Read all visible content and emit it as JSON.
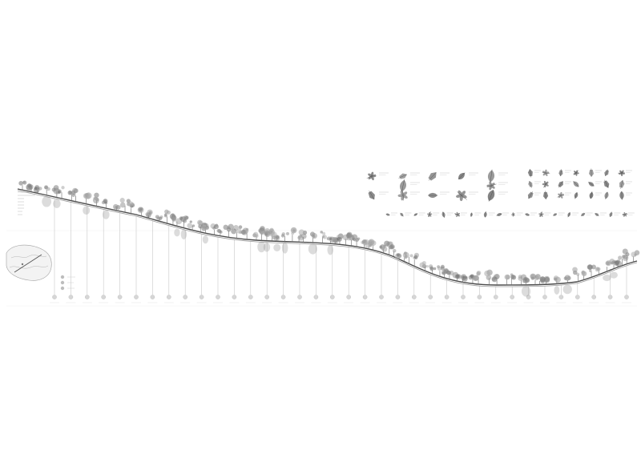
{
  "drawing": {
    "title": "",
    "colors": {
      "ink": "#6f6f6f",
      "ink_dark": "#3a3a3a",
      "foliage": "#8a8a8a",
      "paper": "#ffffff",
      "guide": "#c9c9c9"
    },
    "icons": {
      "tree": "tree-icon",
      "leaf": "leaf-icon",
      "marker": "station-marker-icon",
      "locator": "site-locator-map-icon"
    },
    "station_count": 36,
    "leaf_panel_a_count": 12,
    "leaf_panel_b_count": 21,
    "leaf_strip_count": 18
  }
}
